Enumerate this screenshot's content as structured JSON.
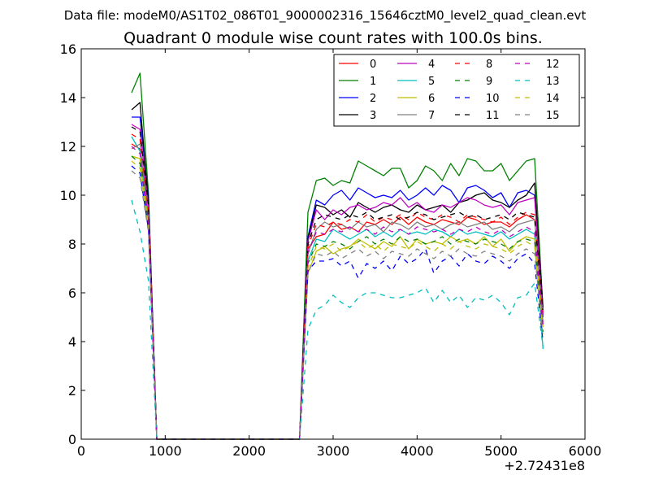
{
  "window": {
    "supertitle": "Data file: modeM0/AS1T02_086T01_9000002316_15646cztM0_level2_quad_clean.evt"
  },
  "chart_data": {
    "type": "line",
    "title": "Quadrant 0 module wise count rates with 100.0s bins.",
    "xlabel": "",
    "ylabel": "",
    "x_offset_label": "+2.72431e8",
    "xlim": [
      0,
      6000
    ],
    "ylim": [
      0,
      16
    ],
    "xticks": [
      0,
      1000,
      2000,
      3000,
      4000,
      5000,
      6000
    ],
    "xtick_labels": [
      "0",
      "1000",
      "2000",
      "3000",
      "4000",
      "5000",
      "6000"
    ],
    "yticks": [
      0,
      2,
      4,
      6,
      8,
      10,
      12,
      14,
      16
    ],
    "ytick_labels": [
      "0",
      "2",
      "4",
      "6",
      "8",
      "10",
      "12",
      "14",
      "16"
    ],
    "grid": false,
    "legend_position": "top-right",
    "legend_columns": 4,
    "x": [
      600,
      700,
      800,
      900,
      1000,
      1100,
      1200,
      1300,
      1400,
      1500,
      1600,
      1700,
      1800,
      1900,
      2000,
      2100,
      2200,
      2300,
      2400,
      2500,
      2600,
      2700,
      2800,
      2900,
      3000,
      3100,
      3200,
      3300,
      3400,
      3500,
      3600,
      3700,
      3800,
      3900,
      4000,
      4100,
      4200,
      4300,
      4400,
      4500,
      4600,
      4700,
      4800,
      4900,
      5000,
      5100,
      5200,
      5300,
      5400,
      5500
    ],
    "series": [
      {
        "name": "0",
        "color": "#ff0000",
        "dash": "solid",
        "values": [
          12.1,
          11.9,
          9.6,
          0,
          0,
          0,
          0,
          0,
          0,
          0,
          0,
          0,
          0,
          0,
          0,
          0,
          0,
          0,
          0,
          0,
          0,
          7.8,
          8.3,
          8.4,
          8.9,
          8.6,
          8.7,
          8.5,
          8.9,
          8.8,
          9.0,
          8.8,
          9.1,
          8.8,
          9.1,
          8.9,
          8.8,
          9.0,
          8.9,
          8.8,
          9.1,
          9.0,
          8.8,
          8.9,
          8.9,
          8.7,
          9.0,
          9.2,
          9.0,
          5.2
        ]
      },
      {
        "name": "1",
        "color": "#008000",
        "dash": "solid",
        "values": [
          14.2,
          15.0,
          10.1,
          0,
          0,
          0,
          0,
          0,
          0,
          0,
          0,
          0,
          0,
          0,
          0,
          0,
          0,
          0,
          0,
          0,
          0,
          9.3,
          10.6,
          10.7,
          10.4,
          10.6,
          10.5,
          11.4,
          11.2,
          11.0,
          10.8,
          11.1,
          11.1,
          10.3,
          10.6,
          11.2,
          11.0,
          10.6,
          11.3,
          10.8,
          11.5,
          11.4,
          11.0,
          11.0,
          11.3,
          10.6,
          11.0,
          11.4,
          11.5,
          5.3
        ]
      },
      {
        "name": "2",
        "color": "#0000ff",
        "dash": "solid",
        "values": [
          13.2,
          13.2,
          9.9,
          0,
          0,
          0,
          0,
          0,
          0,
          0,
          0,
          0,
          0,
          0,
          0,
          0,
          0,
          0,
          0,
          0,
          0,
          8.3,
          9.8,
          9.6,
          10.0,
          10.2,
          9.8,
          10.3,
          10.1,
          9.9,
          10.0,
          9.9,
          10.2,
          9.8,
          10.0,
          10.3,
          10.0,
          10.4,
          10.2,
          9.7,
          10.3,
          10.4,
          10.2,
          9.9,
          10.1,
          9.5,
          10.1,
          10.2,
          10.0,
          5.0
        ]
      },
      {
        "name": "3",
        "color": "#000000",
        "dash": "solid",
        "values": [
          13.5,
          13.8,
          9.7,
          0,
          0,
          0,
          0,
          0,
          0,
          0,
          0,
          0,
          0,
          0,
          0,
          0,
          0,
          0,
          0,
          0,
          0,
          8.2,
          9.6,
          9.5,
          9.2,
          9.4,
          9.1,
          9.7,
          9.5,
          9.3,
          9.5,
          9.6,
          9.4,
          9.3,
          9.6,
          9.4,
          9.5,
          9.6,
          9.3,
          9.7,
          9.8,
          10.0,
          10.1,
          9.8,
          9.7,
          9.5,
          9.8,
          10.0,
          10.5,
          5.4
        ]
      },
      {
        "name": "4",
        "color": "#bf00bf",
        "dash": "solid",
        "values": [
          12.9,
          12.7,
          9.5,
          0,
          0,
          0,
          0,
          0,
          0,
          0,
          0,
          0,
          0,
          0,
          0,
          0,
          0,
          0,
          0,
          0,
          0,
          8.1,
          9.4,
          9.0,
          9.4,
          9.2,
          9.5,
          9.6,
          9.4,
          9.5,
          9.7,
          9.6,
          9.9,
          9.5,
          9.7,
          9.4,
          9.3,
          9.6,
          9.5,
          9.7,
          9.9,
          9.8,
          9.6,
          9.5,
          9.6,
          9.2,
          9.7,
          9.8,
          9.9,
          5.1
        ]
      },
      {
        "name": "5",
        "color": "#00bfbf",
        "dash": "solid",
        "values": [
          12.4,
          11.8,
          9.0,
          0,
          0,
          0,
          0,
          0,
          0,
          0,
          0,
          0,
          0,
          0,
          0,
          0,
          0,
          0,
          0,
          0,
          0,
          7.3,
          8.2,
          8.1,
          8.6,
          8.4,
          8.2,
          8.4,
          8.6,
          8.3,
          8.5,
          8.3,
          8.6,
          8.4,
          8.5,
          8.4,
          8.6,
          8.5,
          8.3,
          8.6,
          8.4,
          8.5,
          8.4,
          8.3,
          8.5,
          8.2,
          8.4,
          8.6,
          8.4,
          3.7
        ]
      },
      {
        "name": "6",
        "color": "#bfbf00",
        "dash": "solid",
        "values": [
          11.6,
          11.5,
          8.8,
          0,
          0,
          0,
          0,
          0,
          0,
          0,
          0,
          0,
          0,
          0,
          0,
          0,
          0,
          0,
          0,
          0,
          0,
          6.8,
          7.7,
          7.9,
          7.6,
          7.8,
          7.9,
          8.2,
          8.0,
          7.8,
          8.1,
          7.9,
          8.3,
          7.8,
          8.2,
          8.0,
          8.1,
          8.0,
          8.3,
          8.1,
          8.2,
          8.0,
          8.3,
          7.9,
          8.2,
          7.7,
          8.1,
          8.3,
          8.2,
          4.6
        ]
      },
      {
        "name": "7",
        "color": "#808080",
        "dash": "solid",
        "values": [
          11.9,
          12.1,
          9.2,
          0,
          0,
          0,
          0,
          0,
          0,
          0,
          0,
          0,
          0,
          0,
          0,
          0,
          0,
          0,
          0,
          0,
          0,
          7.6,
          8.6,
          8.9,
          8.7,
          8.8,
          8.6,
          8.9,
          8.7,
          8.8,
          8.5,
          8.9,
          8.8,
          8.6,
          8.9,
          8.7,
          8.8,
          8.6,
          8.8,
          8.9,
          8.7,
          8.8,
          8.9,
          8.6,
          8.7,
          8.5,
          8.8,
          8.9,
          9.0,
          4.8
        ]
      },
      {
        "name": "8",
        "color": "#ff0000",
        "dash": "dash",
        "values": [
          12.5,
          12.3,
          9.4,
          0,
          0,
          0,
          0,
          0,
          0,
          0,
          0,
          0,
          0,
          0,
          0,
          0,
          0,
          0,
          0,
          0,
          0,
          7.9,
          8.8,
          8.7,
          8.9,
          8.8,
          9.0,
          8.9,
          9.2,
          8.9,
          9.1,
          9.0,
          9.2,
          9.0,
          9.3,
          9.1,
          9.0,
          9.2,
          9.1,
          8.9,
          9.2,
          9.1,
          9.0,
          8.9,
          9.1,
          8.8,
          9.1,
          9.3,
          9.2,
          5.0
        ]
      },
      {
        "name": "9",
        "color": "#008000",
        "dash": "dash",
        "values": [
          11.6,
          11.3,
          8.9,
          0,
          0,
          0,
          0,
          0,
          0,
          0,
          0,
          0,
          0,
          0,
          0,
          0,
          0,
          0,
          0,
          0,
          0,
          7.2,
          8.0,
          7.9,
          8.1,
          8.0,
          7.8,
          8.1,
          8.3,
          8.0,
          8.2,
          8.0,
          8.3,
          8.1,
          8.2,
          8.0,
          8.1,
          8.3,
          8.0,
          8.2,
          8.1,
          8.0,
          8.2,
          8.1,
          8.0,
          7.8,
          8.1,
          8.2,
          8.1,
          4.4
        ]
      },
      {
        "name": "10",
        "color": "#0000ff",
        "dash": "dash",
        "values": [
          11.2,
          10.9,
          8.6,
          0,
          0,
          0,
          0,
          0,
          0,
          0,
          0,
          0,
          0,
          0,
          0,
          0,
          0,
          0,
          0,
          0,
          0,
          6.9,
          7.3,
          7.3,
          7.4,
          7.1,
          7.3,
          6.6,
          7.2,
          7.0,
          7.3,
          6.9,
          7.5,
          7.2,
          7.4,
          7.8,
          6.8,
          7.3,
          7.5,
          7.1,
          7.6,
          7.3,
          7.2,
          7.5,
          7.3,
          7.0,
          7.4,
          7.6,
          7.2,
          4.0
        ]
      },
      {
        "name": "11",
        "color": "#000000",
        "dash": "dash",
        "values": [
          12.8,
          12.6,
          9.6,
          0,
          0,
          0,
          0,
          0,
          0,
          0,
          0,
          0,
          0,
          0,
          0,
          0,
          0,
          0,
          0,
          0,
          0,
          8.0,
          9.0,
          9.2,
          9.1,
          9.0,
          9.2,
          9.1,
          9.3,
          9.0,
          9.1,
          9.2,
          9.0,
          9.1,
          9.3,
          9.2,
          9.0,
          9.1,
          9.2,
          9.3,
          9.1,
          9.2,
          9.0,
          9.1,
          9.2,
          9.0,
          9.3,
          9.2,
          9.1,
          5.3
        ]
      },
      {
        "name": "12",
        "color": "#bf00bf",
        "dash": "dash",
        "values": [
          12.0,
          11.7,
          9.0,
          0,
          0,
          0,
          0,
          0,
          0,
          0,
          0,
          0,
          0,
          0,
          0,
          0,
          0,
          0,
          0,
          0,
          0,
          7.6,
          8.5,
          8.4,
          8.6,
          8.5,
          8.7,
          8.5,
          8.6,
          8.4,
          8.7,
          8.5,
          8.6,
          8.4,
          8.7,
          8.6,
          8.5,
          8.6,
          8.4,
          8.6,
          8.5,
          8.7,
          8.5,
          8.4,
          8.6,
          8.3,
          8.5,
          8.7,
          8.5,
          4.7
        ]
      },
      {
        "name": "13",
        "color": "#00bfbf",
        "dash": "dash",
        "values": [
          9.8,
          8.5,
          6.5,
          0,
          0,
          0,
          0,
          0,
          0,
          0,
          0,
          0,
          0,
          0,
          0,
          0,
          0,
          0,
          0,
          0,
          0,
          4.5,
          5.3,
          5.5,
          5.9,
          5.6,
          5.4,
          5.8,
          6.0,
          6.0,
          5.9,
          5.8,
          5.8,
          5.9,
          6.0,
          6.2,
          5.6,
          6.1,
          5.6,
          5.9,
          5.4,
          5.8,
          5.7,
          5.9,
          5.6,
          5.1,
          5.8,
          5.9,
          6.4,
          3.8
        ]
      },
      {
        "name": "14",
        "color": "#bfbf00",
        "dash": "dash",
        "values": [
          11.4,
          11.1,
          8.7,
          0,
          0,
          0,
          0,
          0,
          0,
          0,
          0,
          0,
          0,
          0,
          0,
          0,
          0,
          0,
          0,
          0,
          0,
          7.0,
          7.9,
          7.8,
          8.0,
          7.7,
          7.9,
          8.1,
          7.8,
          8.0,
          7.7,
          8.0,
          7.9,
          7.8,
          8.1,
          7.9,
          7.7,
          8.0,
          7.8,
          8.1,
          7.9,
          7.8,
          8.0,
          7.9,
          7.8,
          7.6,
          7.9,
          8.1,
          7.9,
          4.3
        ]
      },
      {
        "name": "15",
        "color": "#808080",
        "dash": "dash",
        "values": [
          11.0,
          10.7,
          8.5,
          0,
          0,
          0,
          0,
          0,
          0,
          0,
          0,
          0,
          0,
          0,
          0,
          0,
          0,
          0,
          0,
          0,
          0,
          6.8,
          7.6,
          7.5,
          7.7,
          7.4,
          7.6,
          7.8,
          7.5,
          7.7,
          7.4,
          7.7,
          7.6,
          7.5,
          7.8,
          7.6,
          7.4,
          7.7,
          7.5,
          7.8,
          7.6,
          7.5,
          7.7,
          7.6,
          7.5,
          7.3,
          7.6,
          7.8,
          7.6,
          4.2
        ]
      }
    ]
  }
}
